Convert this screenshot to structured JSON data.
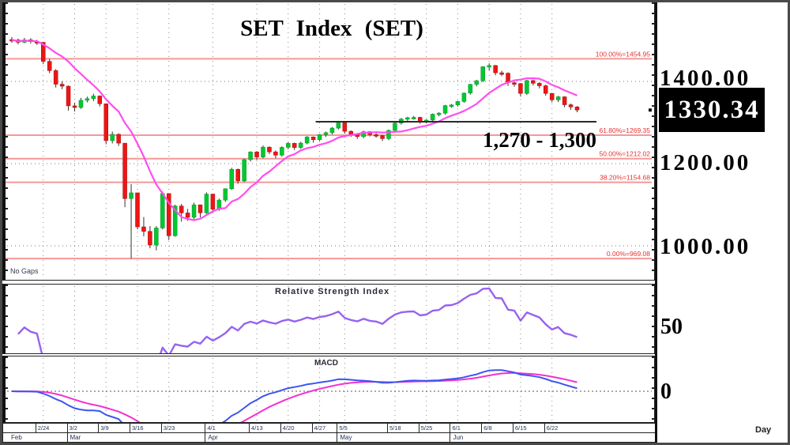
{
  "title": "SET Index (SET)",
  "annotation": "1,270 - 1,300",
  "current_price": "1330.34",
  "labels": {
    "no_gaps": "No Gaps",
    "rsi_title": "Relative Strength Index",
    "macd_title": "MACD",
    "day": "Day",
    "rsi_axis": "50",
    "macd_axis": "0"
  },
  "right_axis": {
    "labels": [
      "1400.00",
      "1200.00",
      "1000.00"
    ]
  },
  "colors": {
    "up": "#00c832",
    "down": "#ee1515",
    "wick": "#333333",
    "ma": "#ff4dee",
    "fib_line": "#f49898",
    "fib_text": "#e83030",
    "grid": "#8a8a8a",
    "rsi": "#9763ef",
    "macd": "#3b55ef",
    "signal": "#f330cf",
    "resistance": "#2a2a2a",
    "box_bg": "#000000",
    "box_text": "#ffffff"
  },
  "chart_data": {
    "type": "candlestick",
    "title": "SET Index (SET)",
    "y_axis_ticks": [
      1400,
      1200,
      1000
    ],
    "y_gridlines": [
      1400,
      1200,
      1000
    ],
    "current_price": 1330.34,
    "fib_levels": [
      {
        "label": "100.00%=1454.95",
        "price": 1454.95
      },
      {
        "label": "61.80%=1269.35",
        "price": 1269.35
      },
      {
        "label": "50.00%=1212.02",
        "price": 1212.02
      },
      {
        "label": "38.20%=1154.68",
        "price": 1154.68
      },
      {
        "label": "0.00%=969.08",
        "price": 969.08
      }
    ],
    "resistance_line": {
      "price": 1302,
      "from_index": 49,
      "to_x": 748,
      "annotation": "1,270 - 1,300"
    },
    "x_ticks": [
      {
        "i": 5,
        "label": "2/24"
      },
      {
        "i": 10,
        "label": "3/2"
      },
      {
        "i": 15,
        "label": "3/9"
      },
      {
        "i": 20,
        "label": "3/16"
      },
      {
        "i": 25,
        "label": "3/23"
      },
      {
        "i": 32,
        "label": "4/1"
      },
      {
        "i": 39,
        "label": "4/13"
      },
      {
        "i": 44,
        "label": "4/20"
      },
      {
        "i": 49,
        "label": "4/27"
      },
      {
        "i": 53,
        "label": "5/5"
      },
      {
        "i": 61,
        "label": "5/18"
      },
      {
        "i": 66,
        "label": "5/25"
      },
      {
        "i": 71,
        "label": "6/1"
      },
      {
        "i": 76,
        "label": "6/8"
      },
      {
        "i": 81,
        "label": "6/15"
      },
      {
        "i": 86,
        "label": "6/22"
      }
    ],
    "months": [
      {
        "i": 0,
        "label": "Feb"
      },
      {
        "i": 10,
        "label": "Mar"
      },
      {
        "i": 32,
        "label": "Apr"
      },
      {
        "i": 53,
        "label": "May"
      },
      {
        "i": 71,
        "label": "Jun"
      }
    ],
    "indicators": [
      {
        "name": "Relative Strength Index",
        "period": 14,
        "axis_label": 50
      },
      {
        "name": "MACD",
        "axis_label": 0
      },
      {
        "name": "MA",
        "period": 10
      }
    ],
    "candles": [
      [
        "2/17",
        1502,
        1508,
        1494,
        1500.9
      ],
      [
        "2/18",
        1500.9,
        1504,
        1490,
        1495.2
      ],
      [
        "2/19",
        1495.2,
        1506,
        1493,
        1501.1
      ],
      [
        "2/20",
        1501.1,
        1505,
        1492,
        1496.9
      ],
      [
        "2/21",
        1496.9,
        1501,
        1489,
        1495.1
      ],
      [
        "2/24",
        1495.1,
        1495.1,
        1442,
        1448.8
      ],
      [
        "2/25",
        1448.8,
        1455,
        1420,
        1426.2
      ],
      [
        "2/26",
        1426.2,
        1430,
        1385,
        1393.2
      ],
      [
        "2/27",
        1393.2,
        1400,
        1381,
        1388.4
      ],
      [
        "2/28",
        1388.4,
        1390,
        1329,
        1340.5
      ],
      [
        "3/2",
        1340.5,
        1348,
        1327,
        1336.5
      ],
      [
        "3/3",
        1336.5,
        1360,
        1333,
        1354
      ],
      [
        "3/4",
        1354,
        1363,
        1349,
        1358.1
      ],
      [
        "3/5",
        1358.1,
        1370,
        1352,
        1364.5
      ],
      [
        "3/6",
        1364.5,
        1366,
        1339,
        1345.6
      ],
      [
        "3/9",
        1345.6,
        1346,
        1247,
        1255.9
      ],
      [
        "3/10",
        1255.9,
        1278,
        1249,
        1271.2
      ],
      [
        "3/11",
        1271.2,
        1274,
        1243,
        1249.8
      ],
      [
        "3/12",
        1249.8,
        1250,
        1094,
        1114.9
      ],
      [
        "3/13",
        1114.9,
        1150,
        969.1,
        1128.9
      ],
      [
        "3/16",
        1128.9,
        1129,
        1040,
        1046.1
      ],
      [
        "3/17",
        1046.1,
        1070,
        1023,
        1035.2
      ],
      [
        "3/18",
        1035.2,
        1048,
        994,
        1001.9
      ],
      [
        "3/19",
        1001.9,
        1048,
        989,
        1043.4
      ],
      [
        "3/20",
        1043.4,
        1132,
        1040,
        1127.2
      ],
      [
        "3/23",
        1127.2,
        1128,
        1014,
        1024.5
      ],
      [
        "3/24",
        1024.5,
        1100,
        1022,
        1096.9
      ],
      [
        "3/25",
        1096.9,
        1102,
        1059,
        1080
      ],
      [
        "3/26",
        1080,
        1090,
        1061,
        1069.3
      ],
      [
        "3/27",
        1069.3,
        1105,
        1065,
        1099.8
      ],
      [
        "3/30",
        1099.8,
        1100,
        1069,
        1080.2
      ],
      [
        "3/31",
        1080.2,
        1130,
        1078,
        1125.9
      ],
      [
        "4/1",
        1125.9,
        1126,
        1081,
        1089.1
      ],
      [
        "4/2",
        1089.1,
        1115,
        1085,
        1111.3
      ],
      [
        "4/3",
        1111.3,
        1140,
        1107,
        1138.8
      ],
      [
        "4/7",
        1138.8,
        1190,
        1136,
        1186
      ],
      [
        "4/8",
        1186,
        1188,
        1151,
        1157.9
      ],
      [
        "4/9",
        1157.9,
        1212,
        1155,
        1209.6
      ],
      [
        "4/10",
        1209.6,
        1230,
        1205,
        1228.4
      ],
      [
        "4/13",
        1228.4,
        1230,
        1209,
        1216.1
      ],
      [
        "4/14",
        1216.1,
        1244,
        1213,
        1240.1
      ],
      [
        "4/15",
        1240.1,
        1242,
        1223,
        1228.6
      ],
      [
        "4/16",
        1228.6,
        1232,
        1213,
        1220.5
      ],
      [
        "4/17",
        1220.5,
        1242,
        1217,
        1239.5
      ],
      [
        "4/20",
        1239.5,
        1252,
        1235,
        1249.3
      ],
      [
        "4/21",
        1249.3,
        1251,
        1233,
        1239.2
      ],
      [
        "4/22",
        1239.2,
        1253,
        1236,
        1250
      ],
      [
        "4/23",
        1250,
        1267,
        1247,
        1264.8
      ],
      [
        "4/24",
        1264.8,
        1266,
        1251,
        1258.2
      ],
      [
        "4/27",
        1258.2,
        1272,
        1255,
        1270.3
      ],
      [
        "4/28",
        1270.3,
        1278,
        1265,
        1275.2
      ],
      [
        "4/29",
        1275.2,
        1289,
        1271,
        1286.4
      ],
      [
        "4/30",
        1286.4,
        1304,
        1283,
        1301.7
      ],
      [
        "5/5",
        1301.7,
        1302,
        1273,
        1278.6
      ],
      [
        "5/7",
        1278.6,
        1281,
        1265,
        1270.7
      ],
      [
        "5/8",
        1270.7,
        1274,
        1260,
        1265.7
      ],
      [
        "5/11",
        1265.7,
        1280,
        1262,
        1277.7
      ],
      [
        "5/12",
        1277.7,
        1279,
        1266,
        1270.6
      ],
      [
        "5/13",
        1270.6,
        1274,
        1263,
        1268.2
      ],
      [
        "5/14",
        1268.2,
        1270,
        1255,
        1260.8
      ],
      [
        "5/15",
        1260.8,
        1283,
        1257,
        1280.7
      ],
      [
        "5/18",
        1280.7,
        1300,
        1277,
        1298.5
      ],
      [
        "5/19",
        1298.5,
        1311,
        1295,
        1308.5
      ],
      [
        "5/20",
        1308.5,
        1314,
        1304,
        1311.7
      ],
      [
        "5/21",
        1311.7,
        1316,
        1307,
        1312.5
      ],
      [
        "5/22",
        1312.5,
        1314,
        1297,
        1303.2
      ],
      [
        "5/25",
        1303.2,
        1308,
        1298,
        1305.9
      ],
      [
        "5/26",
        1305.9,
        1322,
        1302,
        1320.2
      ],
      [
        "5/27",
        1320.2,
        1325,
        1315,
        1322.9
      ],
      [
        "5/28",
        1322.9,
        1343,
        1319,
        1341.2
      ],
      [
        "5/29",
        1341.2,
        1345,
        1336,
        1342.8
      ],
      [
        "6/1",
        1342.8,
        1353,
        1339,
        1351.2
      ],
      [
        "6/2",
        1351.2,
        1373,
        1348,
        1371.5
      ],
      [
        "6/3",
        1371.5,
        1394,
        1368,
        1392.9
      ],
      [
        "6/4",
        1392.9,
        1404,
        1388,
        1401.7
      ],
      [
        "6/5",
        1401.7,
        1437,
        1398,
        1435.7
      ],
      [
        "6/8",
        1435.7,
        1444,
        1427,
        1438.7
      ],
      [
        "6/9",
        1438.7,
        1440,
        1415,
        1421
      ],
      [
        "6/10",
        1421,
        1426,
        1413,
        1420
      ],
      [
        "6/11",
        1420,
        1422,
        1389,
        1396.8
      ],
      [
        "6/12",
        1396.8,
        1400,
        1387,
        1394.9
      ],
      [
        "6/15",
        1394.9,
        1396,
        1363,
        1370.8
      ],
      [
        "6/16",
        1370.8,
        1404,
        1367,
        1402
      ],
      [
        "6/17",
        1402,
        1404,
        1390,
        1395.5
      ],
      [
        "6/18",
        1395.5,
        1398,
        1383,
        1389.4
      ],
      [
        "6/19",
        1389.4,
        1392,
        1365,
        1370.8
      ],
      [
        "6/22",
        1370.8,
        1372,
        1349,
        1355.1
      ],
      [
        "6/23",
        1355.1,
        1365,
        1350,
        1362.5
      ],
      [
        "6/24",
        1362.5,
        1364,
        1337,
        1343.2
      ],
      [
        "6/25",
        1343.2,
        1346,
        1331,
        1337.9
      ],
      [
        "6/26",
        1337.9,
        1340,
        1325,
        1330.34
      ]
    ]
  }
}
